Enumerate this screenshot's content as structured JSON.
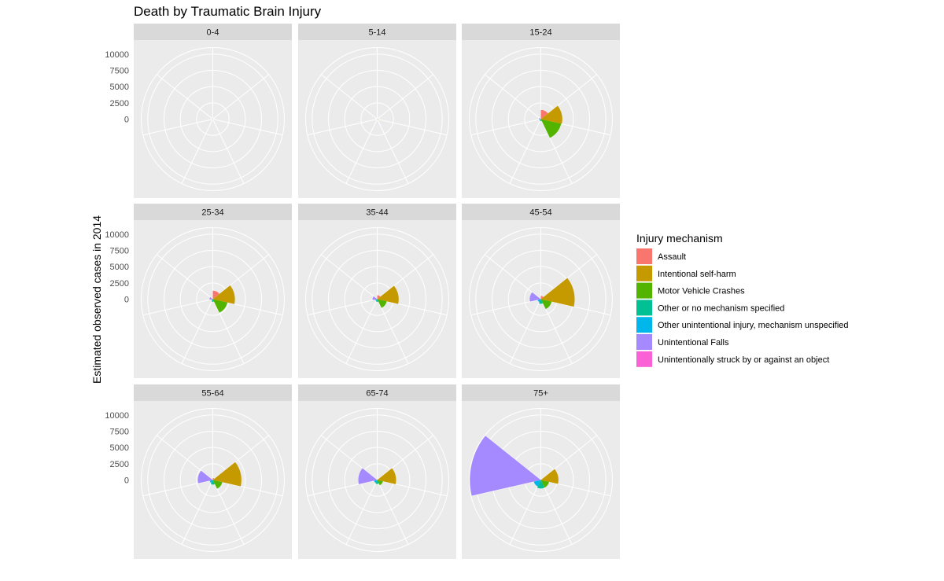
{
  "chart_data": {
    "type": "polar-bar",
    "title": "Death by Traumatic Brain Injury",
    "ylabel": "Estimated observed cases in 2014",
    "xlabel": "",
    "ylim": [
      0,
      11000
    ],
    "y_ticks": [
      0,
      2500,
      5000,
      7500,
      10000
    ],
    "grid": true,
    "legend": {
      "title": "Injury mechanism",
      "position": "right"
    },
    "categories": [
      "Assault",
      "Intentional self-harm",
      "Motor Vehicle Crashes",
      "Other or no mechanism specified",
      "Other unintentional injury, mechanism unspecified",
      "Unintentional Falls",
      "Unintentionally struck by or against an object"
    ],
    "colors": [
      "#F8766D",
      "#C49A00",
      "#53B400",
      "#00C094",
      "#00B6EB",
      "#A58AFF",
      "#FB61D7"
    ],
    "facets": [
      {
        "label": "0-4",
        "values": [
          100,
          5,
          70,
          90,
          10,
          30,
          20
        ]
      },
      {
        "label": "5-14",
        "values": [
          50,
          40,
          150,
          30,
          10,
          30,
          10
        ]
      },
      {
        "label": "15-24",
        "values": [
          1400,
          3300,
          3200,
          300,
          200,
          300,
          50
        ]
      },
      {
        "label": "25-34",
        "values": [
          1300,
          3400,
          2300,
          400,
          200,
          500,
          60
        ]
      },
      {
        "label": "35-44",
        "values": [
          600,
          3300,
          1500,
          400,
          300,
          700,
          60
        ]
      },
      {
        "label": "45-54",
        "values": [
          500,
          5200,
          1700,
          700,
          500,
          1700,
          80
        ]
      },
      {
        "label": "55-64",
        "values": [
          300,
          4400,
          1500,
          700,
          500,
          2300,
          80
        ]
      },
      {
        "label": "65-74",
        "values": [
          100,
          2900,
          900,
          600,
          500,
          2900,
          60
        ]
      },
      {
        "label": "75+",
        "values": [
          80,
          2700,
          1300,
          1300,
          1100,
          10900,
          100
        ]
      }
    ]
  }
}
